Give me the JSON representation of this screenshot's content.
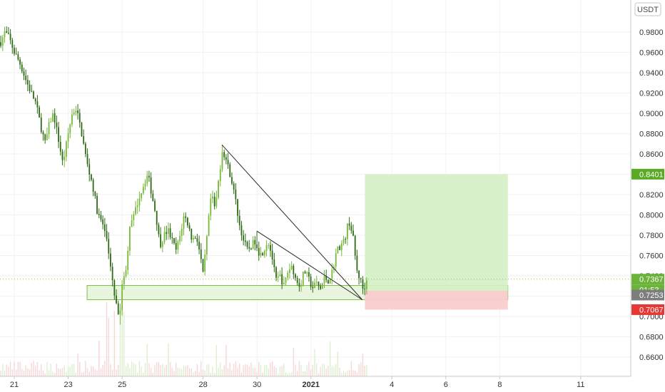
{
  "chart_data": {
    "type": "candlestick",
    "title": "",
    "currency_label": "USDT",
    "ylim": [
      0.64,
      1.0
    ],
    "y_ticks": [
      "0.9800",
      "0.9600",
      "0.9400",
      "0.9200",
      "0.9000",
      "0.8800",
      "0.8600",
      "0.8400",
      "0.8200",
      "0.8000",
      "0.7800",
      "0.7600",
      "0.7400",
      "0.7200",
      "0.7000",
      "0.6800",
      "0.6600"
    ],
    "y_tick_values": [
      0.98,
      0.96,
      0.94,
      0.92,
      0.9,
      0.88,
      0.86,
      0.84,
      0.82,
      0.8,
      0.78,
      0.76,
      0.74,
      0.72,
      0.7,
      0.68,
      0.66
    ],
    "x_ticks": [
      "21",
      "23",
      "25",
      "28",
      "30",
      "2021",
      "4",
      "6",
      "8",
      "11"
    ],
    "x_tick_values": [
      0,
      2,
      4,
      7,
      9,
      11,
      14,
      16,
      18,
      21
    ],
    "x_tick_bold": [
      false,
      false,
      false,
      false,
      false,
      true,
      false,
      false,
      false,
      false
    ],
    "price_labels": {
      "target": "0.8401",
      "last": "0.7367",
      "countdown": "01:53",
      "entry": "0.7253",
      "stop": "0.7067"
    },
    "price_label_values": {
      "target": 0.8401,
      "last": 0.7367,
      "entry": 0.7253,
      "stop": 0.7067
    },
    "support_zone": {
      "x_start": 2.7,
      "x_end": 18.3,
      "y_low": 0.7165,
      "y_high": 0.7305
    },
    "position": {
      "x_start": 13.0,
      "x_end": 18.3,
      "entry": 0.7253,
      "target": 0.8401,
      "stop": 0.7067
    },
    "trend_lines": [
      {
        "x1": 7.7,
        "y1": 0.869,
        "x2": 12.9,
        "y2": 0.7165
      },
      {
        "x1": 9.0,
        "y1": 0.784,
        "x2": 12.9,
        "y2": 0.7165
      }
    ],
    "price_keypoints": [
      [
        -0.5,
        0.97
      ],
      [
        -0.35,
        0.98
      ],
      [
        -0.2,
        0.975
      ],
      [
        0.0,
        0.96
      ],
      [
        0.2,
        0.95
      ],
      [
        0.4,
        0.935
      ],
      [
        0.55,
        0.925
      ],
      [
        0.8,
        0.91
      ],
      [
        1.0,
        0.885
      ],
      [
        1.15,
        0.87
      ],
      [
        1.3,
        0.89
      ],
      [
        1.45,
        0.9
      ],
      [
        1.6,
        0.88
      ],
      [
        1.8,
        0.85
      ],
      [
        2.0,
        0.88
      ],
      [
        2.15,
        0.9
      ],
      [
        2.3,
        0.905
      ],
      [
        2.5,
        0.88
      ],
      [
        2.7,
        0.85
      ],
      [
        2.9,
        0.83
      ],
      [
        3.1,
        0.8
      ],
      [
        3.3,
        0.79
      ],
      [
        3.45,
        0.77
      ],
      [
        3.6,
        0.74
      ],
      [
        3.75,
        0.715
      ],
      [
        3.9,
        0.7
      ],
      [
        4.0,
        0.73
      ],
      [
        4.15,
        0.75
      ],
      [
        4.3,
        0.79
      ],
      [
        4.45,
        0.8
      ],
      [
        4.6,
        0.815
      ],
      [
        4.8,
        0.83
      ],
      [
        4.95,
        0.84
      ],
      [
        5.1,
        0.82
      ],
      [
        5.25,
        0.8
      ],
      [
        5.4,
        0.77
      ],
      [
        5.55,
        0.78
      ],
      [
        5.7,
        0.785
      ],
      [
        5.85,
        0.775
      ],
      [
        6.0,
        0.765
      ],
      [
        6.15,
        0.78
      ],
      [
        6.3,
        0.8
      ],
      [
        6.45,
        0.79
      ],
      [
        6.6,
        0.775
      ],
      [
        6.75,
        0.78
      ],
      [
        6.9,
        0.76
      ],
      [
        7.0,
        0.74
      ],
      [
        7.15,
        0.78
      ],
      [
        7.3,
        0.82
      ],
      [
        7.45,
        0.805
      ],
      [
        7.6,
        0.84
      ],
      [
        7.72,
        0.865
      ],
      [
        7.9,
        0.85
      ],
      [
        8.05,
        0.835
      ],
      [
        8.2,
        0.815
      ],
      [
        8.35,
        0.79
      ],
      [
        8.5,
        0.775
      ],
      [
        8.65,
        0.765
      ],
      [
        8.8,
        0.77
      ],
      [
        8.95,
        0.775
      ],
      [
        9.1,
        0.76
      ],
      [
        9.25,
        0.765
      ],
      [
        9.4,
        0.775
      ],
      [
        9.55,
        0.76
      ],
      [
        9.7,
        0.735
      ],
      [
        9.85,
        0.74
      ],
      [
        10.0,
        0.73
      ],
      [
        10.15,
        0.745
      ],
      [
        10.3,
        0.75
      ],
      [
        10.45,
        0.735
      ],
      [
        10.6,
        0.73
      ],
      [
        10.75,
        0.745
      ],
      [
        10.9,
        0.738
      ],
      [
        11.05,
        0.728
      ],
      [
        11.2,
        0.733
      ],
      [
        11.35,
        0.727
      ],
      [
        11.5,
        0.738
      ],
      [
        11.65,
        0.735
      ],
      [
        11.8,
        0.745
      ],
      [
        11.95,
        0.765
      ],
      [
        12.1,
        0.77
      ],
      [
        12.25,
        0.775
      ],
      [
        12.4,
        0.795
      ],
      [
        12.55,
        0.78
      ],
      [
        12.7,
        0.745
      ],
      [
        12.85,
        0.735
      ],
      [
        12.95,
        0.725
      ],
      [
        13.05,
        0.735
      ],
      [
        13.12,
        0.7367
      ]
    ],
    "volume": {
      "scale": 0.025
    }
  }
}
